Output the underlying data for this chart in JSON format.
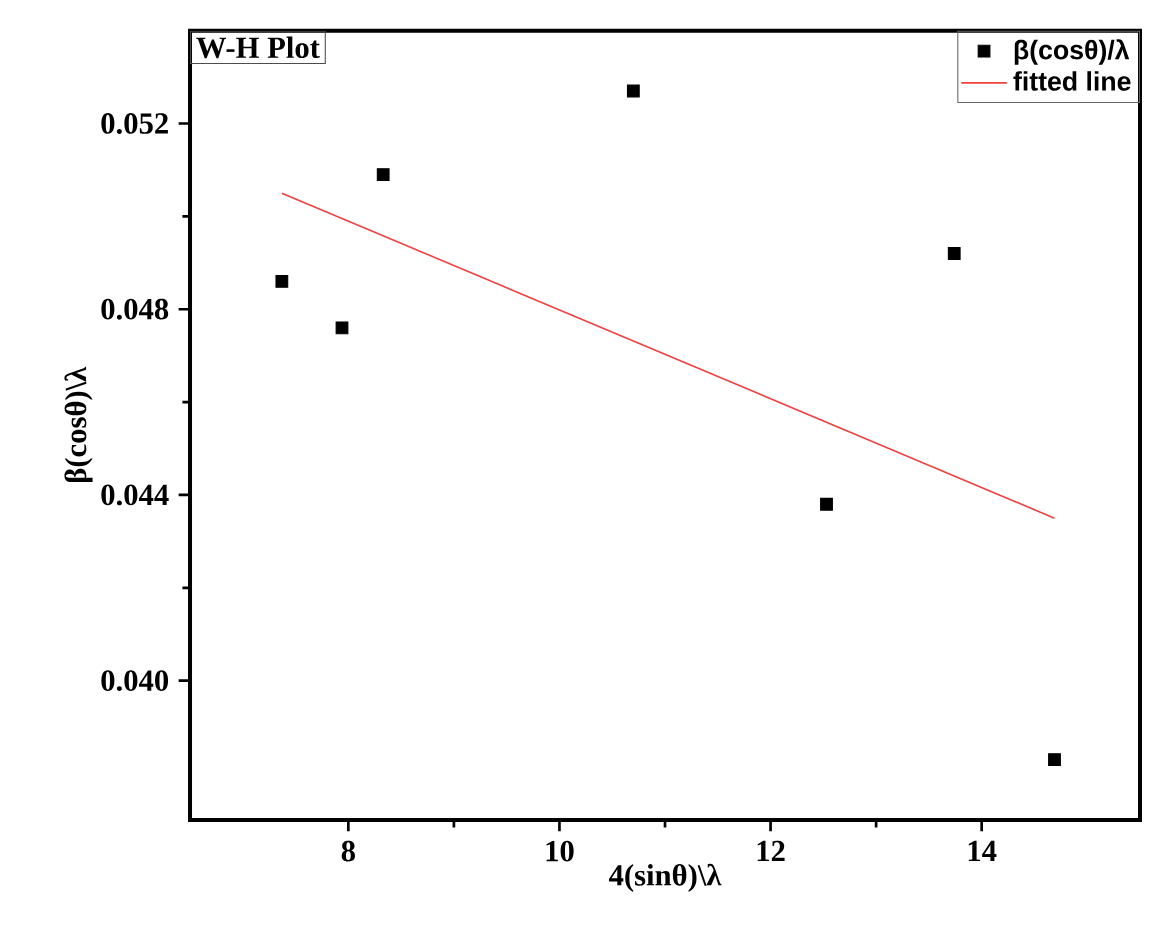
{
  "chart_data": {
    "type": "scatter",
    "xlabel": "4(sinθ)\\λ",
    "ylabel": "β(cosθ)\\λ",
    "annotations": [
      "W-H Plot"
    ],
    "series": [
      {
        "name": "β(cosθ)/λ",
        "color": "#000000",
        "marker": "square",
        "x": [
          7.37,
          7.94,
          8.33,
          10.7,
          12.53,
          13.74,
          14.69
        ],
        "values": [
          0.0486,
          0.0476,
          0.0509,
          0.0527,
          0.0438,
          0.0492,
          0.0383
        ]
      },
      {
        "name": "fitted line",
        "type": "line",
        "color": "#f04040",
        "marker": "none",
        "line_style": "solid",
        "x": [
          7.37,
          14.69
        ],
        "values": [
          0.0505,
          0.0435
        ]
      }
    ],
    "xlim": [
      6.5,
      15.5
    ],
    "xticks": [
      8,
      10,
      12,
      14
    ],
    "ylim": [
      0.037,
      0.054
    ],
    "yticks": [
      {
        "value": 0.04,
        "label": "0.040"
      },
      0.044,
      0.048,
      0.052
    ],
    "grid": false,
    "legend": "top right"
  }
}
